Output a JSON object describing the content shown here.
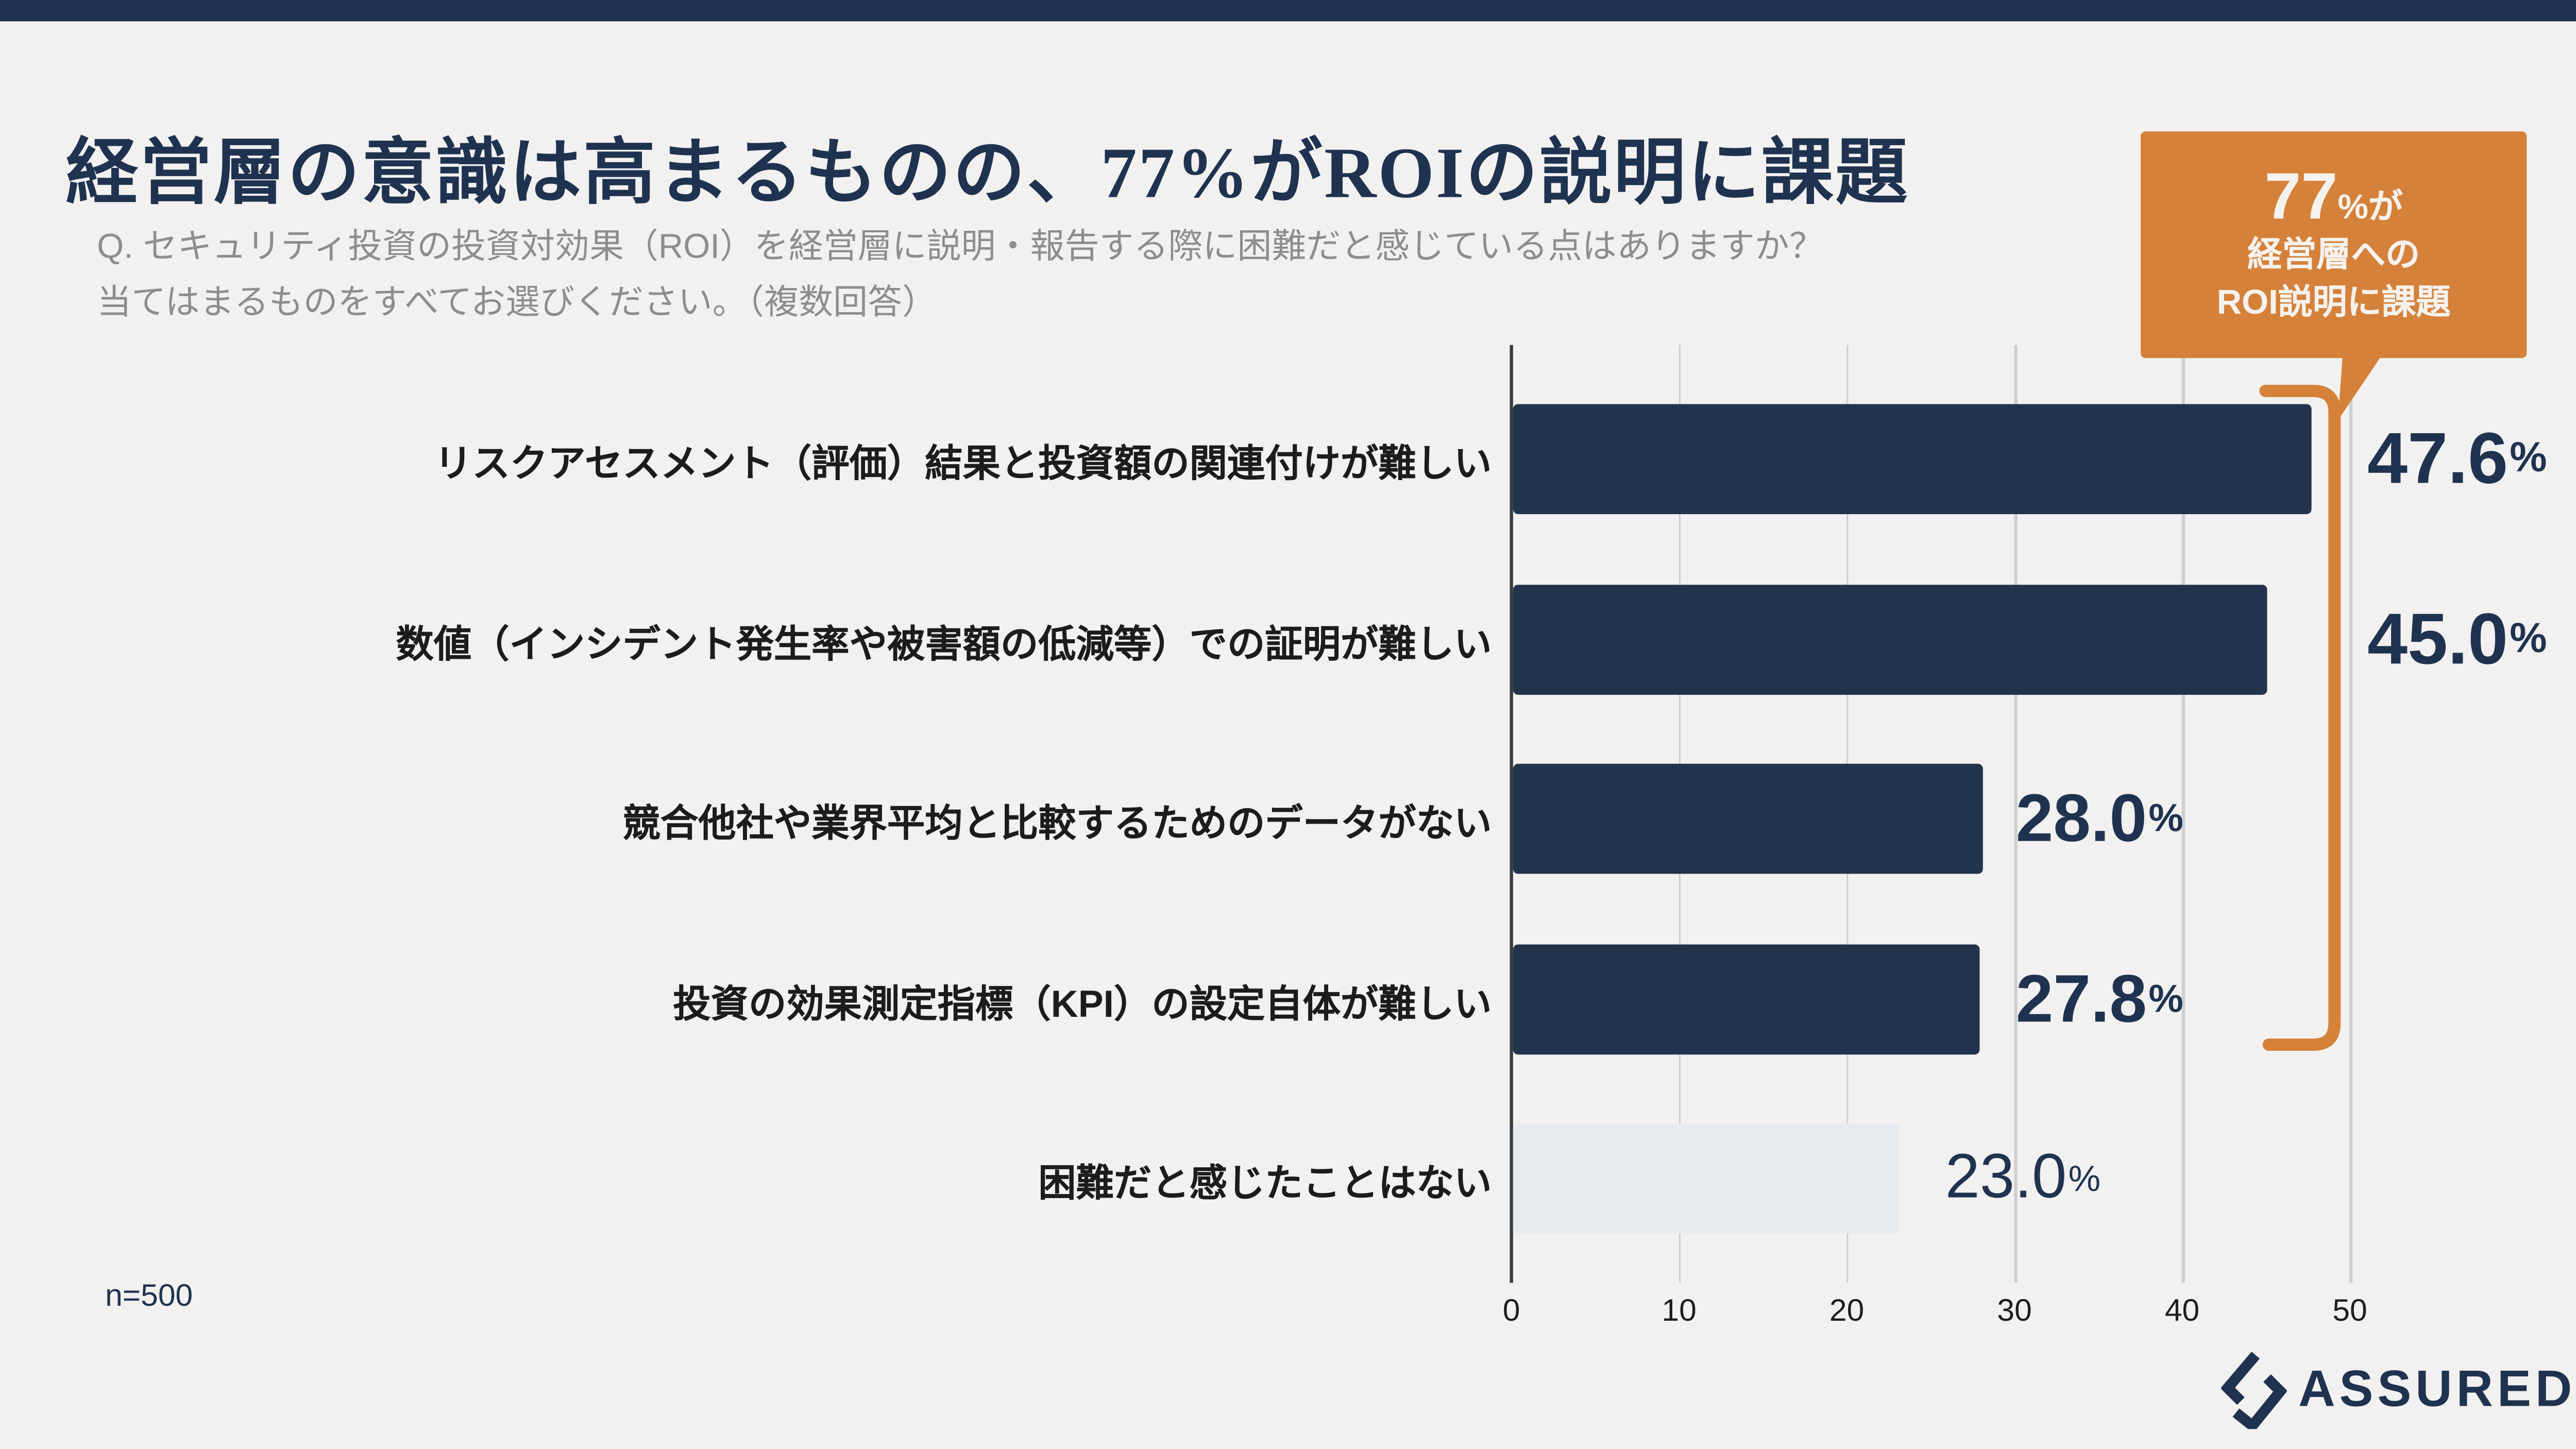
{
  "page": {
    "background": "#F2F1F0",
    "accent_navy": "#1F3350",
    "accent_orange": "#D5813A",
    "top_band_color": "#1F3350"
  },
  "header": {
    "title": "経営層の意識は高まるものの、77%がROIの説明に課題",
    "question_line1": "Q. セキュリティ投資の投資対効果（ROI）を経営層に説明・報告する際に困難だと感じている点はありますか？",
    "question_line2": "当てはまるものをすべてお選びください。（複数回答）"
  },
  "callout": {
    "big": "77",
    "suffix": "%が",
    "line2": "経営層への",
    "line3": "ROI説明に課題",
    "bg_color": "#D5813A",
    "text_color": "#F5F2EE"
  },
  "chart_data": {
    "type": "bar",
    "orientation": "horizontal",
    "title": "経営層の意識は高まるものの、77%がROIの説明に課題",
    "categories": [
      "リスクアセスメント（評価）結果と投資額の関連付けが難しい",
      "数値（インシデント発生率や被害額の低減等）での証明が難しい",
      "競合他社や業界平均と比較するためのデータがない",
      "投資の効果測定指標（KPI）の設定自体が難しい",
      "困難だと感じたことはない"
    ],
    "values": [
      47.6,
      45.0,
      28.0,
      27.8,
      23.0
    ],
    "value_labels": [
      "47.6%",
      "45.0%",
      "28.0%",
      "27.8%",
      "23.0%"
    ],
    "xlabel": "",
    "ylabel": "",
    "xlim": [
      0,
      55.7
    ],
    "xticks": [
      0,
      10,
      20,
      30,
      40,
      50
    ],
    "grid": true,
    "legend": false,
    "bar_colors": [
      "#22334E",
      "#22334E",
      "#22334E",
      "#22334E",
      "#E7EBF0"
    ],
    "value_color": "#1F3350",
    "annotation": {
      "text": "77%が経営層へのROI説明に課題",
      "covers_bars": [
        0,
        1,
        2,
        3
      ],
      "style": "orange bracket with speech-bubble callout"
    }
  },
  "footer": {
    "sample_size": "n=500",
    "logo_text": "ASSURED"
  }
}
